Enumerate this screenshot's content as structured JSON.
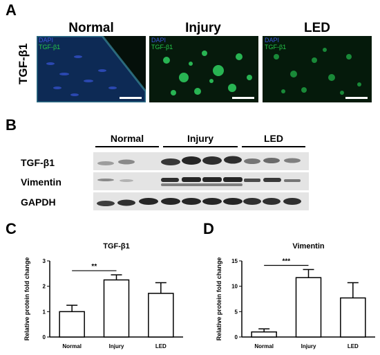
{
  "panel_labels": {
    "a": "A",
    "b": "B",
    "c": "C",
    "d": "D"
  },
  "panel_a": {
    "row_label": "TGF-β1",
    "conditions": [
      "Normal",
      "Injury",
      "LED"
    ],
    "stain_labels": [
      "DAPI",
      "TGF-β1"
    ]
  },
  "panel_b": {
    "groups": [
      "Normal",
      "Injury",
      "LED"
    ],
    "rows": [
      "TGF-β1",
      "Vimentin",
      "GAPDH"
    ]
  },
  "colors": {
    "dapi": "#3a55d8",
    "tgf": "#25c84a"
  },
  "chart_data": [
    {
      "type": "bar",
      "title": "TGF-β1",
      "ylabel": "Relative protein fold change",
      "xlabel": "",
      "categories": [
        "Normal",
        "Injury",
        "LED"
      ],
      "values": [
        1.0,
        2.25,
        1.72
      ],
      "errors": [
        0.25,
        0.2,
        0.42
      ],
      "ylim": [
        0,
        3
      ],
      "yticks": [
        "0",
        "1",
        "2",
        "3"
      ],
      "significance": {
        "from": "Normal",
        "to": "Injury",
        "label": "**"
      }
    },
    {
      "type": "bar",
      "title": "Vimentin",
      "ylabel": "Relative protein fold change",
      "xlabel": "",
      "categories": [
        "Normal",
        "Injury",
        "LED"
      ],
      "values": [
        1.0,
        11.7,
        7.7
      ],
      "errors": [
        0.6,
        1.6,
        3.0
      ],
      "ylim": [
        0,
        15
      ],
      "yticks": [
        "0",
        "5",
        "10",
        "15"
      ],
      "significance": {
        "from": "Normal",
        "to": "Injury",
        "label": "***"
      }
    }
  ]
}
